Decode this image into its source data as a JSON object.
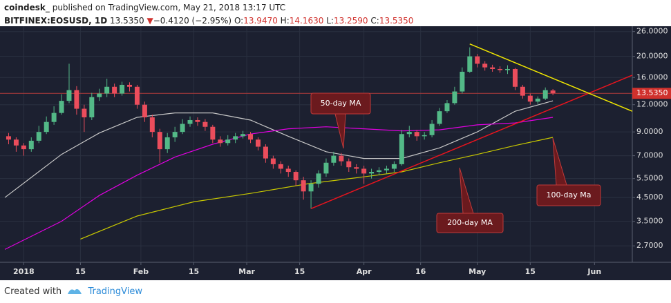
{
  "header": {
    "author": "coindesk_",
    "published": "published on TradingView.com, May 21, 2018 13:17 UTC",
    "symbol": "BITFINEX:EOSUSD, 1D",
    "price": "13.5350",
    "arrow": "▼",
    "change": "−0.4120 (−2.95%)",
    "o_label": "O:",
    "o": "13.9470",
    "h_label": "H:",
    "h": "14.1630",
    "l_label": "L:",
    "l": "13.2590",
    "c_label": "C:",
    "c": "13.5350"
  },
  "chart_data": {
    "type": "candlestick",
    "log_scale": true,
    "up_color": "#53b987",
    "down_color": "#eb4d5c",
    "x": [
      -4,
      -2,
      0,
      2,
      4,
      6,
      8,
      10,
      12,
      14,
      16,
      18,
      20,
      22,
      24,
      26,
      28,
      30,
      32,
      34,
      36,
      38,
      40,
      42,
      44,
      46,
      48,
      50,
      52,
      54,
      56,
      58,
      60,
      62,
      64,
      66,
      68,
      70,
      72,
      74,
      76,
      78,
      80,
      82,
      84,
      86,
      88,
      90,
      92,
      94,
      96,
      98,
      100,
      102,
      104,
      106,
      108,
      110,
      112,
      114,
      116,
      118,
      120,
      122,
      124,
      126,
      128,
      130,
      132,
      134,
      136,
      138,
      140
    ],
    "open": [
      8.6,
      8.3,
      7.8,
      7.5,
      8.2,
      9.0,
      10.0,
      11.0,
      12.5,
      14.0,
      11.5,
      10.5,
      13.0,
      13.5,
      14.5,
      13.5,
      14.8,
      14.5,
      12.0,
      10.5,
      9.0,
      7.5,
      8.5,
      9.0,
      9.8,
      10.2,
      10.0,
      9.5,
      8.3,
      8.0,
      8.3,
      8.6,
      8.8,
      8.3,
      7.7,
      6.8,
      6.4,
      6.1,
      5.9,
      5.4,
      4.8,
      5.2,
      5.8,
      6.5,
      7.0,
      6.6,
      6.2,
      6.1,
      5.8,
      5.9,
      6.0,
      6.1,
      6.4,
      8.8,
      9.0,
      8.6,
      8.7,
      9.8,
      11.2,
      12.2,
      13.8,
      17.0,
      20.0,
      18.5,
      17.8,
      17.5,
      17.3,
      17.5,
      14.5,
      13.2,
      12.4,
      12.8,
      13.947
    ],
    "high": [
      8.9,
      8.5,
      8.0,
      8.5,
      9.6,
      10.6,
      11.8,
      13.4,
      18.5,
      14.6,
      12.0,
      13.6,
      14.2,
      15.8,
      15.0,
      15.3,
      15.2,
      14.8,
      12.4,
      10.8,
      9.3,
      8.9,
      9.5,
      10.3,
      10.6,
      10.5,
      10.3,
      9.7,
      8.6,
      8.7,
      8.9,
      9.1,
      9.0,
      8.5,
      7.9,
      7.0,
      6.6,
      6.3,
      6.0,
      5.6,
      5.4,
      6.0,
      6.8,
      7.3,
      7.2,
      6.8,
      6.4,
      6.3,
      6.1,
      6.2,
      6.3,
      6.6,
      9.2,
      9.6,
      9.2,
      9.0,
      10.2,
      11.6,
      12.6,
      14.5,
      17.8,
      22.0,
      20.5,
      19.0,
      18.3,
      18.0,
      18.2,
      17.7,
      14.8,
      13.5,
      13.1,
      14.4,
      14.163
    ],
    "low": [
      7.9,
      7.3,
      7.0,
      7.3,
      8.0,
      8.8,
      9.7,
      10.8,
      12.2,
      10.8,
      9.0,
      10.2,
      12.5,
      13.0,
      13.0,
      13.2,
      13.8,
      11.5,
      10.0,
      8.5,
      6.5,
      7.2,
      8.1,
      8.8,
      9.5,
      9.6,
      9.1,
      8.0,
      7.7,
      7.8,
      8.0,
      8.4,
      8.0,
      7.4,
      6.5,
      6.1,
      5.8,
      5.6,
      5.1,
      4.4,
      4.0,
      5.0,
      5.6,
      6.3,
      6.3,
      5.9,
      5.8,
      5.2,
      5.5,
      5.7,
      5.8,
      5.9,
      6.3,
      8.5,
      8.2,
      8.3,
      8.5,
      9.6,
      11.0,
      12.0,
      13.5,
      16.8,
      17.8,
      17.2,
      17.0,
      16.8,
      16.6,
      14.0,
      12.8,
      12.0,
      12.1,
      12.6,
      13.259
    ],
    "close": [
      8.3,
      7.8,
      7.5,
      8.2,
      9.0,
      10.0,
      11.0,
      12.5,
      14.0,
      11.5,
      10.5,
      13.0,
      13.5,
      14.5,
      13.5,
      14.8,
      14.5,
      12.0,
      10.5,
      9.0,
      7.5,
      8.5,
      9.0,
      9.8,
      10.2,
      10.0,
      9.5,
      8.3,
      8.0,
      8.3,
      8.6,
      8.8,
      8.3,
      7.7,
      6.8,
      6.4,
      6.1,
      5.9,
      5.4,
      4.8,
      5.2,
      5.8,
      6.5,
      7.0,
      6.6,
      6.2,
      6.1,
      5.8,
      5.9,
      6.0,
      6.1,
      6.4,
      8.8,
      9.0,
      8.6,
      8.7,
      9.8,
      11.2,
      12.2,
      13.8,
      17.0,
      20.0,
      18.5,
      17.8,
      17.5,
      17.3,
      17.5,
      14.5,
      13.2,
      12.4,
      12.8,
      14.0,
      13.535
    ],
    "moving_averages": [
      {
        "color": "#c8c8c8",
        "x": [
          -5,
          10,
          20,
          30,
          40,
          50,
          60,
          70,
          80,
          90,
          100,
          110,
          120,
          130,
          140
        ],
        "values": [
          4.5,
          7.1,
          8.9,
          10.5,
          11.0,
          11.0,
          10.2,
          8.6,
          7.3,
          6.8,
          6.8,
          7.6,
          9.0,
          11.2,
          12.5
        ]
      },
      {
        "color": "#e100e1",
        "x": [
          -5,
          10,
          20,
          30,
          40,
          50,
          60,
          70,
          80,
          90,
          100,
          110,
          120,
          130,
          140
        ],
        "values": [
          2.6,
          3.5,
          4.6,
          5.7,
          6.9,
          7.9,
          8.8,
          9.3,
          9.5,
          9.3,
          9.1,
          9.2,
          9.7,
          9.9,
          10.5
        ]
      },
      {
        "color": "#c8c800",
        "x": [
          15,
          30,
          45,
          60,
          75,
          90,
          100,
          110,
          120,
          130,
          140
        ],
        "values": [
          2.9,
          3.7,
          4.3,
          4.7,
          5.2,
          5.6,
          5.9,
          6.5,
          7.1,
          7.8,
          8.5
        ]
      }
    ],
    "trendlines": [
      {
        "color": "#e8141e",
        "x": [
          76,
          161
        ],
        "values": [
          4.0,
          16.4
        ]
      },
      {
        "color": "#f0e600",
        "x": [
          118,
          161
        ],
        "values": [
          22.8,
          11.2
        ]
      }
    ],
    "last_price": 13.535,
    "last_price_label": "13.5350",
    "annotations": [
      "50-day MA",
      "200-day MA",
      "100-day Ma"
    ],
    "xlim": [
      -5,
      161
    ],
    "ylim": [
      2.27,
      27.5
    ],
    "xticks": [
      {
        "value": 0,
        "label": "2018"
      },
      15,
      {
        "value": 31,
        "label": "Feb"
      },
      {
        "value": 45,
        "label": "15"
      },
      {
        "value": 59,
        "label": "Mar"
      },
      {
        "value": 73,
        "label": "15"
      },
      {
        "value": 90,
        "label": "Apr"
      },
      {
        "value": 105,
        "label": "16"
      },
      {
        "value": 120,
        "label": "May"
      },
      {
        "value": 134,
        "label": "15"
      },
      {
        "value": 151,
        "label": "Jun"
      }
    ],
    "yticks": [
      {
        "value": 26,
        "label": "26.0000"
      },
      {
        "value": 20,
        "label": "20.0000"
      },
      {
        "value": 16,
        "label": "16.0000"
      },
      {
        "value": 12,
        "label": "12.0000"
      },
      {
        "value": 9,
        "label": "9.0000"
      },
      {
        "value": 7,
        "label": "7.0000"
      },
      {
        "value": 5.5,
        "label": "5.5000"
      },
      {
        "value": 4.5,
        "label": "4.5000"
      },
      {
        "value": 3.5,
        "label": "3.5000"
      },
      {
        "value": 2.7,
        "label": "2.7000"
      }
    ],
    "grid": true
  },
  "footer": {
    "created": "Created with",
    "brand": "TradingView"
  }
}
